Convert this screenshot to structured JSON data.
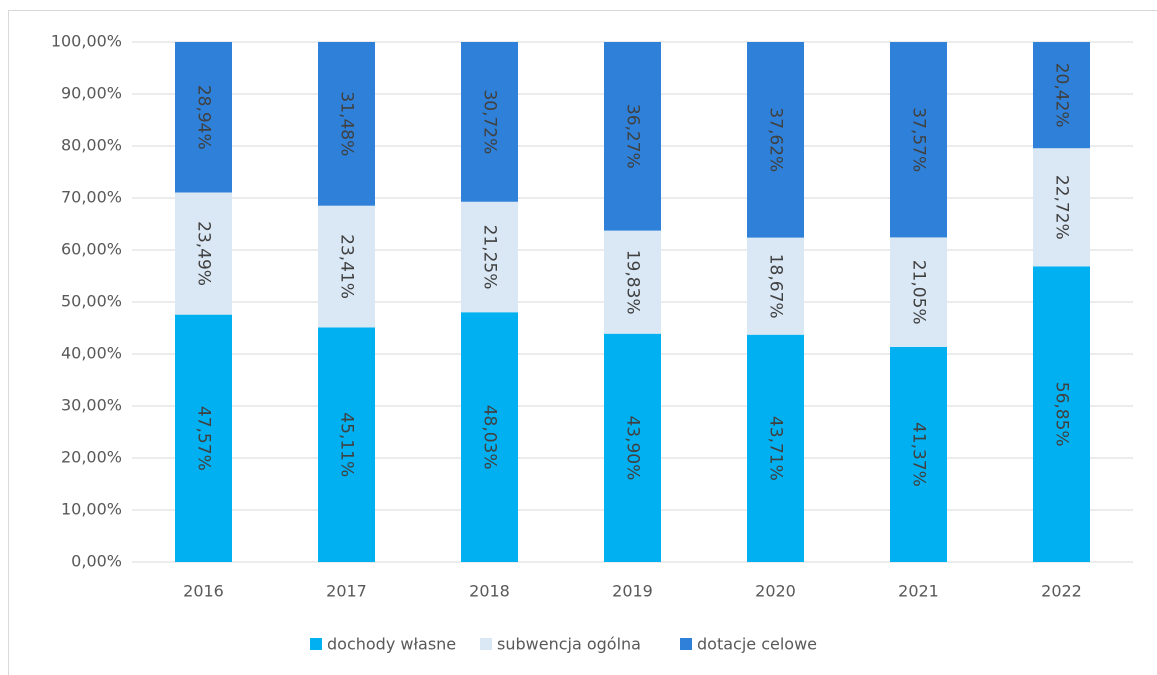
{
  "chart_data": {
    "type": "stacked_bar",
    "categories": [
      "2016",
      "2017",
      "2018",
      "2019",
      "2020",
      "2021",
      "2022"
    ],
    "series": [
      {
        "name": "dochody własne",
        "color": "#00b0f0",
        "values": [
          47.57,
          45.11,
          48.03,
          43.9,
          43.71,
          41.37,
          56.85
        ],
        "value_labels": [
          "47,57%",
          "45,11%",
          "48,03%",
          "43,90%",
          "43,71%",
          "41,37%",
          "56,85%"
        ]
      },
      {
        "name": "subwencja ogólna",
        "color": "#dae8f5",
        "values": [
          23.49,
          23.41,
          21.25,
          19.83,
          18.67,
          21.05,
          22.72
        ],
        "value_labels": [
          "23,49%",
          "23,41%",
          "21,25%",
          "19,83%",
          "18,67%",
          "21,05%",
          "22,72%"
        ]
      },
      {
        "name": "dotacje celowe",
        "color": "#2e80d8",
        "values": [
          28.94,
          31.48,
          30.72,
          36.27,
          37.62,
          37.57,
          20.42
        ],
        "value_labels": [
          "28,94%",
          "31,48%",
          "30,72%",
          "36,27%",
          "37,62%",
          "37,57%",
          "20,42%"
        ]
      }
    ],
    "ylim": [
      0,
      100
    ],
    "yticks": [
      {
        "value": 0,
        "label": "0,00%"
      },
      {
        "value": 10,
        "label": "10,00%"
      },
      {
        "value": 20,
        "label": "20,00%"
      },
      {
        "value": 30,
        "label": "30,00%"
      },
      {
        "value": 40,
        "label": "40,00%"
      },
      {
        "value": 50,
        "label": "50,00%"
      },
      {
        "value": 60,
        "label": "60,00%"
      },
      {
        "value": 70,
        "label": "70,00%"
      },
      {
        "value": 80,
        "label": "80,00%"
      },
      {
        "value": 90,
        "label": "90,00%"
      },
      {
        "value": 100,
        "label": "100,00%"
      }
    ],
    "grid": true,
    "legend": "bottom"
  }
}
